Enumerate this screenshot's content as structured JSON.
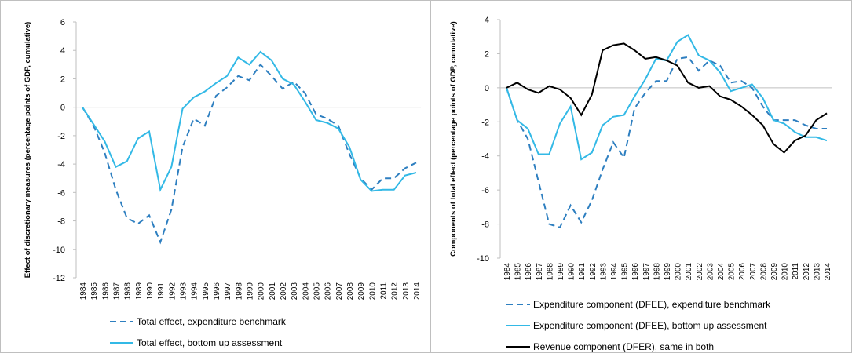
{
  "chart_data": [
    {
      "type": "line",
      "y_label": "Effect of discretionary measures (percentage points of GDP, cumulative)",
      "categories": [
        "1984",
        "1985",
        "1986",
        "1987",
        "1988",
        "1989",
        "1990",
        "1991",
        "1992",
        "1993",
        "1994",
        "1995",
        "1996",
        "1997",
        "1998",
        "1999",
        "2000",
        "2001",
        "2002",
        "2003",
        "2004",
        "2005",
        "2006",
        "2007",
        "2008",
        "2009",
        "2010",
        "2011",
        "2012",
        "2013",
        "2014"
      ],
      "ylim": [
        -12,
        6
      ],
      "yticks": [
        -12,
        -10,
        -8,
        -6,
        -4,
        -2,
        0,
        2,
        4,
        6
      ],
      "grid": false,
      "legend": "bottom",
      "series": [
        {
          "name": "Total effect, expenditure benchmark",
          "color": "#2e7fc0",
          "style": "dashed",
          "values": [
            0,
            -1.3,
            -3.2,
            -5.8,
            -7.8,
            -8.2,
            -7.6,
            -9.5,
            -7.2,
            -2.8,
            -0.8,
            -1.3,
            0.8,
            1.4,
            2.2,
            1.9,
            3.0,
            2.2,
            1.3,
            1.8,
            1.0,
            -0.5,
            -0.8,
            -1.3,
            -3.3,
            -5.0,
            -5.8,
            -5.0,
            -5.0,
            -4.3,
            -3.9
          ]
        },
        {
          "name": "Total effect, bottom up assessment",
          "color": "#33b9e6",
          "style": "solid",
          "values": [
            0,
            -1.2,
            -2.4,
            -4.2,
            -3.8,
            -2.2,
            -1.7,
            -5.8,
            -4.2,
            -0.1,
            0.7,
            1.1,
            1.7,
            2.2,
            3.5,
            3.0,
            3.9,
            3.3,
            2.0,
            1.6,
            0.4,
            -0.9,
            -1.1,
            -1.5,
            -2.8,
            -5.1,
            -5.9,
            -5.8,
            -5.8,
            -4.8,
            -4.6
          ]
        }
      ]
    },
    {
      "type": "line",
      "y_label": "Components of total effect (percentage points of GDP, cumulative)",
      "categories": [
        "1984",
        "1985",
        "1986",
        "1987",
        "1988",
        "1989",
        "1990",
        "1991",
        "1992",
        "1993",
        "1994",
        "1995",
        "1996",
        "1997",
        "1998",
        "1999",
        "2000",
        "2001",
        "2002",
        "2003",
        "2004",
        "2005",
        "2006",
        "2007",
        "2008",
        "2009",
        "2010",
        "2011",
        "2012",
        "2013",
        "2014"
      ],
      "ylim": [
        -10,
        4
      ],
      "yticks": [
        -10,
        -8,
        -6,
        -4,
        -2,
        0,
        2,
        4
      ],
      "grid": false,
      "legend": "bottom",
      "series": [
        {
          "name": "Expenditure component (DFEE), expenditure benchmark",
          "color": "#2e7fc0",
          "style": "dashed",
          "values": [
            0,
            -1.9,
            -3.0,
            -5.5,
            -8.0,
            -8.2,
            -6.9,
            -7.9,
            -6.6,
            -4.8,
            -3.2,
            -4.1,
            -1.2,
            -0.3,
            0.4,
            0.4,
            1.7,
            1.8,
            1.0,
            1.6,
            1.3,
            0.3,
            0.4,
            0.0,
            -1.1,
            -1.9,
            -1.9,
            -1.9,
            -2.2,
            -2.4,
            -2.4
          ]
        },
        {
          "name": "Expenditure component (DFEE), bottom up assessment",
          "color": "#33b9e6",
          "style": "solid",
          "values": [
            0,
            -1.9,
            -2.4,
            -3.9,
            -3.9,
            -2.1,
            -1.1,
            -4.2,
            -3.8,
            -2.2,
            -1.7,
            -1.6,
            -0.5,
            0.5,
            1.7,
            1.6,
            2.7,
            3.1,
            1.9,
            1.6,
            0.9,
            -0.2,
            0.0,
            0.2,
            -0.6,
            -1.9,
            -2.1,
            -2.6,
            -2.9,
            -2.9,
            -3.1
          ]
        },
        {
          "name": "Revenue component (DFER), same in both",
          "color": "#000000",
          "style": "solid",
          "values": [
            0,
            0.3,
            -0.1,
            -0.3,
            0.1,
            -0.1,
            -0.6,
            -1.6,
            -0.4,
            2.2,
            2.5,
            2.6,
            2.2,
            1.7,
            1.8,
            1.6,
            1.3,
            0.3,
            0.0,
            0.1,
            -0.5,
            -0.7,
            -1.1,
            -1.6,
            -2.2,
            -3.3,
            -3.8,
            -3.1,
            -2.8,
            -1.9,
            -1.5
          ]
        }
      ]
    }
  ]
}
